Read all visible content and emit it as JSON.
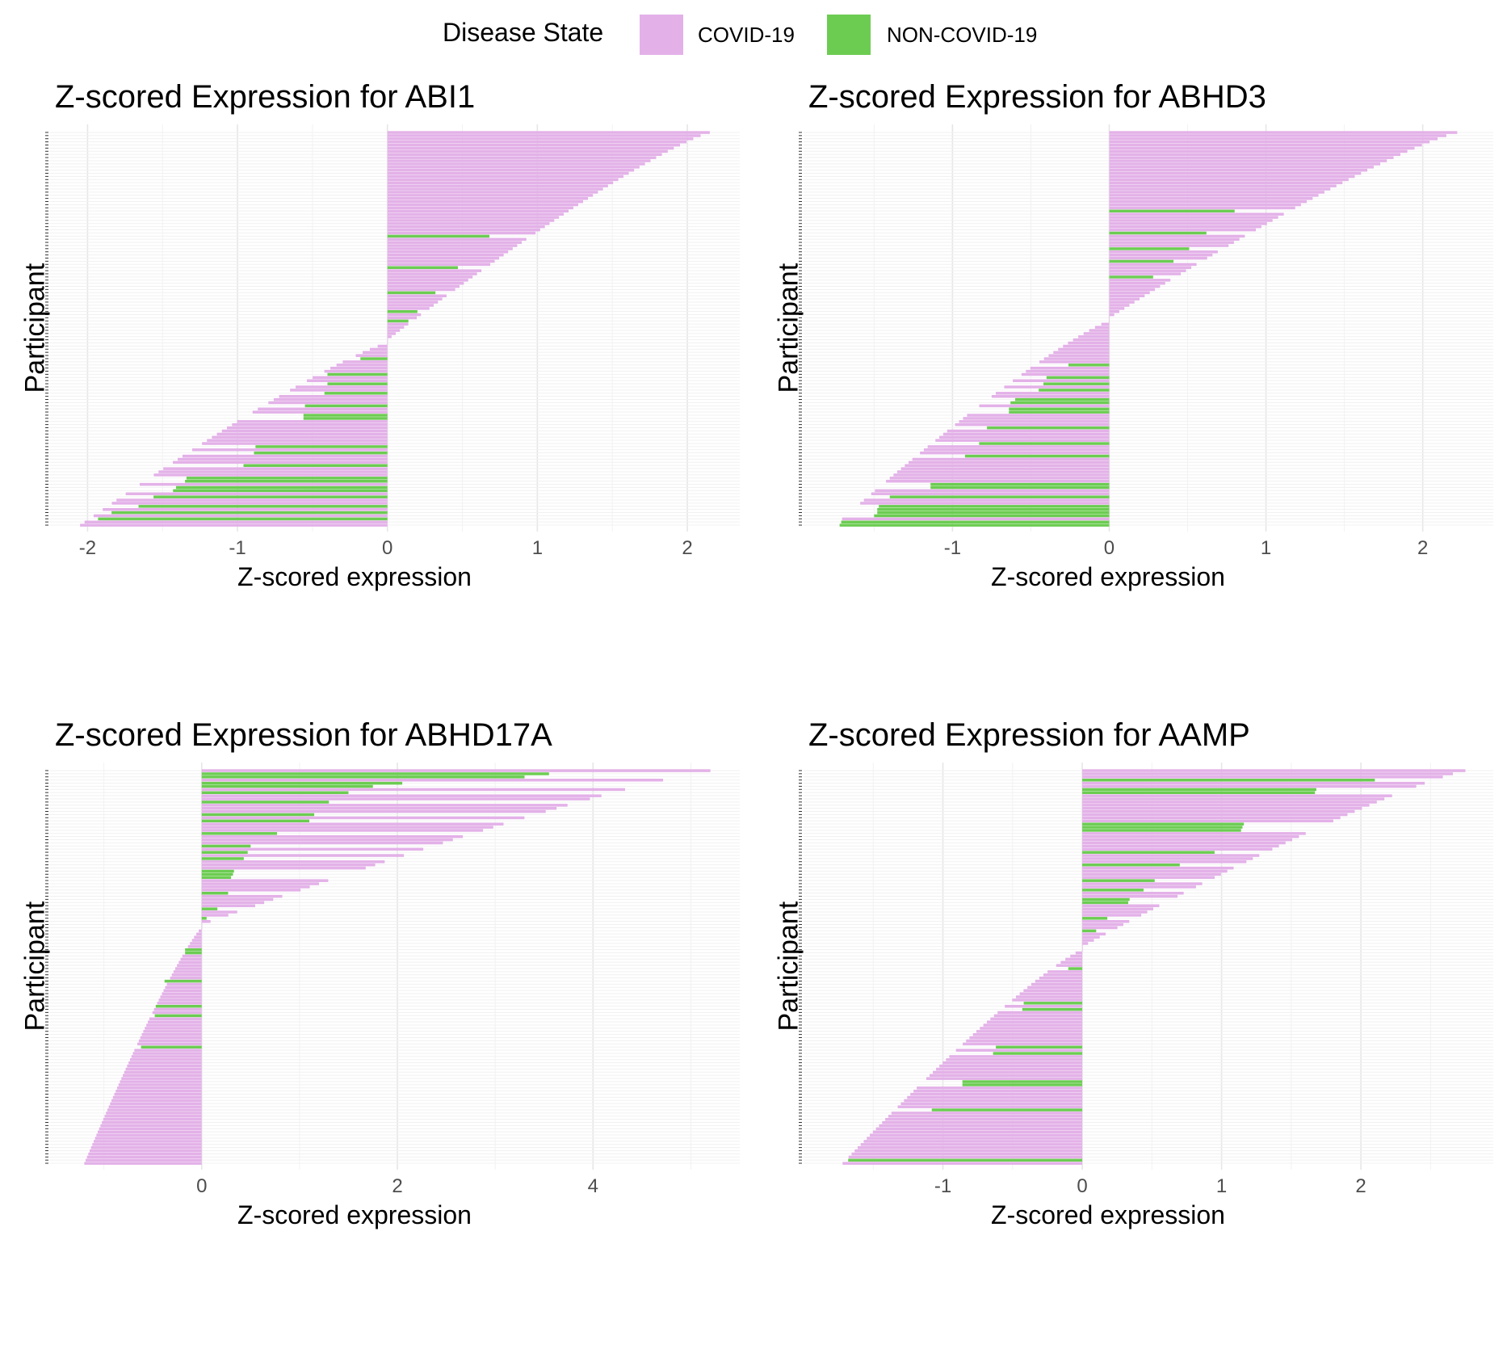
{
  "legend": {
    "title": "Disease State",
    "items": [
      {
        "label": "COVID-19",
        "color": "#E3B1E8"
      },
      {
        "label": "NON-COVID-19",
        "color": "#6CCC52"
      }
    ]
  },
  "chart_data": [
    {
      "type": "bar",
      "orientation": "horizontal",
      "title": "Z-scored Expression for ABI1",
      "xlabel": "Z-scored expression",
      "ylabel": "Participant",
      "xlim": [
        -2.25,
        2.35
      ],
      "xticks": [
        -2,
        -1,
        0,
        1,
        2
      ],
      "xtick_labels": [
        "-2",
        "-1",
        "0",
        "1",
        "2"
      ],
      "n_participants": 126,
      "value_range": [
        -2.05,
        2.15
      ],
      "bands": [
        {
          "start": 0,
          "end": 67,
          "from": 2.15,
          "to": 0.0
        },
        {
          "start": 67,
          "end": 126,
          "from": 0.0,
          "to": -2.05
        }
      ],
      "noncovid_rows": [
        {
          "row": 33,
          "value": 0.68
        },
        {
          "row": 43,
          "value": 0.47
        },
        {
          "row": 51,
          "value": 0.32
        },
        {
          "row": 57,
          "value": 0.2
        },
        {
          "row": 60,
          "value": 0.14
        },
        {
          "row": 72,
          "value": -0.18
        },
        {
          "row": 77,
          "value": -0.4
        },
        {
          "row": 80,
          "value": -0.4
        },
        {
          "row": 83,
          "value": -0.42
        },
        {
          "row": 87,
          "value": -0.55
        },
        {
          "row": 90,
          "value": -0.56
        },
        {
          "row": 91,
          "value": -0.56
        },
        {
          "row": 100,
          "value": -0.88
        },
        {
          "row": 102,
          "value": -0.89
        },
        {
          "row": 106,
          "value": -0.96
        },
        {
          "row": 110,
          "value": -1.34
        },
        {
          "row": 111,
          "value": -1.35
        },
        {
          "row": 113,
          "value": -1.41
        },
        {
          "row": 114,
          "value": -1.43
        },
        {
          "row": 116,
          "value": -1.56
        },
        {
          "row": 119,
          "value": -1.66
        },
        {
          "row": 121,
          "value": -1.84
        },
        {
          "row": 123,
          "value": -1.93
        }
      ]
    },
    {
      "type": "bar",
      "orientation": "horizontal",
      "title": "Z-scored Expression for ABHD3",
      "xlabel": "Z-scored expression",
      "ylabel": "Participant",
      "xlim": [
        -1.95,
        2.45
      ],
      "xticks": [
        -1,
        0,
        1,
        2
      ],
      "xtick_labels": [
        "-1",
        "0",
        "1",
        "2"
      ],
      "n_participants": 126,
      "value_range": [
        -1.75,
        2.22
      ],
      "bands": [
        {
          "start": 0,
          "end": 60,
          "from": 2.22,
          "to": 0.0
        },
        {
          "start": 60,
          "end": 126,
          "from": 0.0,
          "to": -1.75
        }
      ],
      "noncovid_rows": [
        {
          "row": 25,
          "value": 0.8
        },
        {
          "row": 32,
          "value": 0.62
        },
        {
          "row": 37,
          "value": 0.51
        },
        {
          "row": 41,
          "value": 0.41
        },
        {
          "row": 46,
          "value": 0.28
        },
        {
          "row": 74,
          "value": -0.26
        },
        {
          "row": 78,
          "value": -0.4
        },
        {
          "row": 80,
          "value": -0.42
        },
        {
          "row": 82,
          "value": -0.45
        },
        {
          "row": 85,
          "value": -0.6
        },
        {
          "row": 86,
          "value": -0.63
        },
        {
          "row": 88,
          "value": -0.64
        },
        {
          "row": 89,
          "value": -0.64
        },
        {
          "row": 94,
          "value": -0.78
        },
        {
          "row": 99,
          "value": -0.83
        },
        {
          "row": 103,
          "value": -0.92
        },
        {
          "row": 112,
          "value": -1.14
        },
        {
          "row": 113,
          "value": -1.14
        },
        {
          "row": 116,
          "value": -1.4
        },
        {
          "row": 119,
          "value": -1.47
        },
        {
          "row": 120,
          "value": -1.48
        },
        {
          "row": 121,
          "value": -1.48
        },
        {
          "row": 122,
          "value": -1.5
        },
        {
          "row": 124,
          "value": -1.71
        },
        {
          "row": 125,
          "value": -1.72
        }
      ]
    },
    {
      "type": "bar",
      "orientation": "horizontal",
      "title": "Z-scored Expression for ABHD17A",
      "xlabel": "Z-scored expression",
      "ylabel": "Participant",
      "xlim": [
        -1.55,
        5.5
      ],
      "xticks": [
        0,
        2,
        4
      ],
      "xtick_labels": [
        "0",
        "2",
        "4"
      ],
      "n_participants": 126,
      "value_range": [
        -1.2,
        5.2
      ],
      "bands": [
        {
          "start": 0,
          "end": 50,
          "from": 5.2,
          "to": 0.0
        },
        {
          "start": 50,
          "end": 126,
          "from": 0.0,
          "to": -1.2
        }
      ],
      "noncovid_rows": [
        {
          "row": 1,
          "value": 3.55
        },
        {
          "row": 2,
          "value": 3.3
        },
        {
          "row": 4,
          "value": 2.05
        },
        {
          "row": 5,
          "value": 1.75
        },
        {
          "row": 7,
          "value": 1.5
        },
        {
          "row": 10,
          "value": 1.3
        },
        {
          "row": 14,
          "value": 1.15
        },
        {
          "row": 16,
          "value": 1.1
        },
        {
          "row": 20,
          "value": 0.77
        },
        {
          "row": 24,
          "value": 0.5
        },
        {
          "row": 26,
          "value": 0.47
        },
        {
          "row": 28,
          "value": 0.43
        },
        {
          "row": 32,
          "value": 0.33
        },
        {
          "row": 33,
          "value": 0.32
        },
        {
          "row": 34,
          "value": 0.3
        },
        {
          "row": 39,
          "value": 0.27
        },
        {
          "row": 44,
          "value": 0.16
        },
        {
          "row": 47,
          "value": 0.05
        },
        {
          "row": 57,
          "value": -0.17
        },
        {
          "row": 58,
          "value": -0.17
        },
        {
          "row": 67,
          "value": -0.38
        },
        {
          "row": 75,
          "value": -0.47
        },
        {
          "row": 78,
          "value": -0.48
        },
        {
          "row": 88,
          "value": -0.62
        }
      ]
    },
    {
      "type": "bar",
      "orientation": "horizontal",
      "title": "Z-scored Expression for AAMP",
      "xlabel": "Z-scored expression",
      "ylabel": "Participant",
      "xlim": [
        -2.0,
        2.95
      ],
      "xticks": [
        -1,
        0,
        1,
        2
      ],
      "xtick_labels": [
        "-1",
        "0",
        "1",
        "2"
      ],
      "n_participants": 126,
      "value_range": [
        -1.72,
        2.75
      ],
      "bands": [
        {
          "start": 0,
          "end": 57,
          "from": 2.75,
          "to": 0.0
        },
        {
          "start": 57,
          "end": 126,
          "from": 0.0,
          "to": -1.72
        }
      ],
      "noncovid_rows": [
        {
          "row": 3,
          "value": 2.1
        },
        {
          "row": 6,
          "value": 1.68
        },
        {
          "row": 7,
          "value": 1.67
        },
        {
          "row": 17,
          "value": 1.16
        },
        {
          "row": 18,
          "value": 1.15
        },
        {
          "row": 19,
          "value": 1.14
        },
        {
          "row": 26,
          "value": 0.95
        },
        {
          "row": 30,
          "value": 0.7
        },
        {
          "row": 35,
          "value": 0.52
        },
        {
          "row": 38,
          "value": 0.44
        },
        {
          "row": 41,
          "value": 0.34
        },
        {
          "row": 42,
          "value": 0.33
        },
        {
          "row": 47,
          "value": 0.18
        },
        {
          "row": 51,
          "value": 0.1
        },
        {
          "row": 63,
          "value": -0.1
        },
        {
          "row": 74,
          "value": -0.42
        },
        {
          "row": 76,
          "value": -0.43
        },
        {
          "row": 88,
          "value": -0.62
        },
        {
          "row": 90,
          "value": -0.64
        },
        {
          "row": 99,
          "value": -0.86
        },
        {
          "row": 100,
          "value": -0.86
        },
        {
          "row": 108,
          "value": -1.08
        },
        {
          "row": 124,
          "value": -1.68
        }
      ]
    }
  ]
}
